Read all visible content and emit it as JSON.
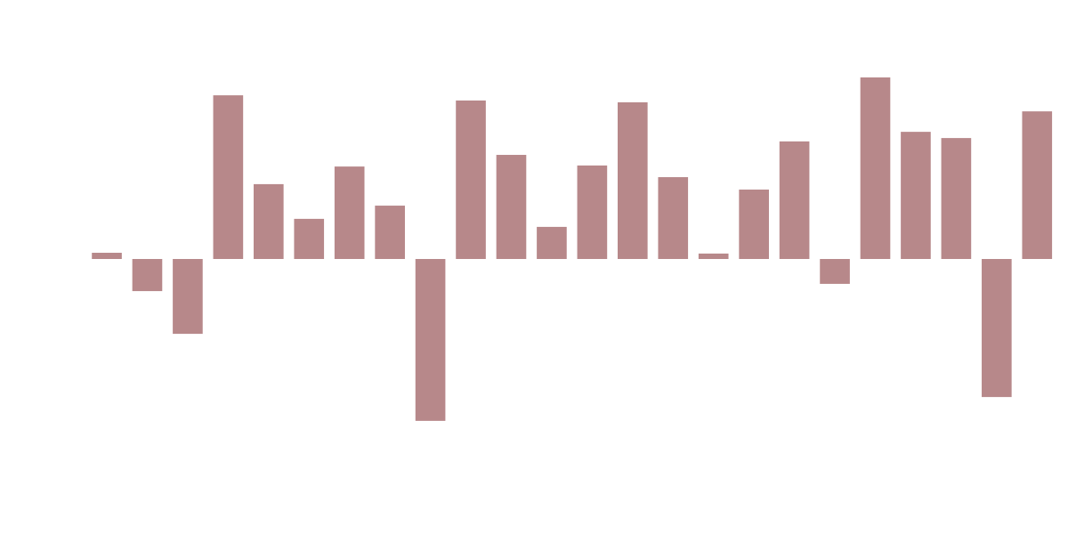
{
  "chart_data": {
    "type": "bar",
    "values": [
      0.24,
      -1.24,
      -2.89,
      6.32,
      2.89,
      1.55,
      3.57,
      2.06,
      -6.25,
      6.12,
      4.02,
      1.24,
      3.61,
      6.05,
      3.16,
      0.21,
      2.68,
      4.54,
      -0.96,
      7.01,
      4.91,
      4.67,
      -5.33,
      5.7
    ],
    "color": "#b7888a",
    "ylim": [
      -10,
      10
    ],
    "grid": false
  }
}
